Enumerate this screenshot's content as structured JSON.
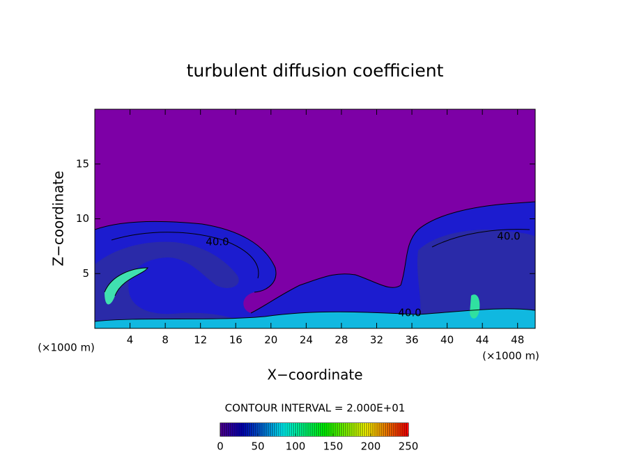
{
  "chart_data": {
    "type": "contour",
    "title": "turbulent diffusion coefficient",
    "x_label": "X−coordinate",
    "y_label": "Z−coordinate",
    "x_unit_left": "(×1000 m)",
    "x_unit_right": "(×1000 m)",
    "xlim": [
      0,
      50
    ],
    "xticks": [
      4,
      8,
      12,
      16,
      20,
      24,
      28,
      32,
      36,
      40,
      44,
      48
    ],
    "ylim": [
      0,
      20
    ],
    "yticks": [
      5,
      10,
      15
    ],
    "contour_interval_text": "CONTOUR INTERVAL = 2.000E+01",
    "contour_labels": [
      "40.0",
      "40.0",
      "40.0"
    ],
    "colorbar": {
      "lim": [
        0,
        250
      ],
      "ticks": [
        0,
        50,
        100,
        150,
        200,
        250
      ]
    },
    "background_color": "#7d00a6"
  }
}
